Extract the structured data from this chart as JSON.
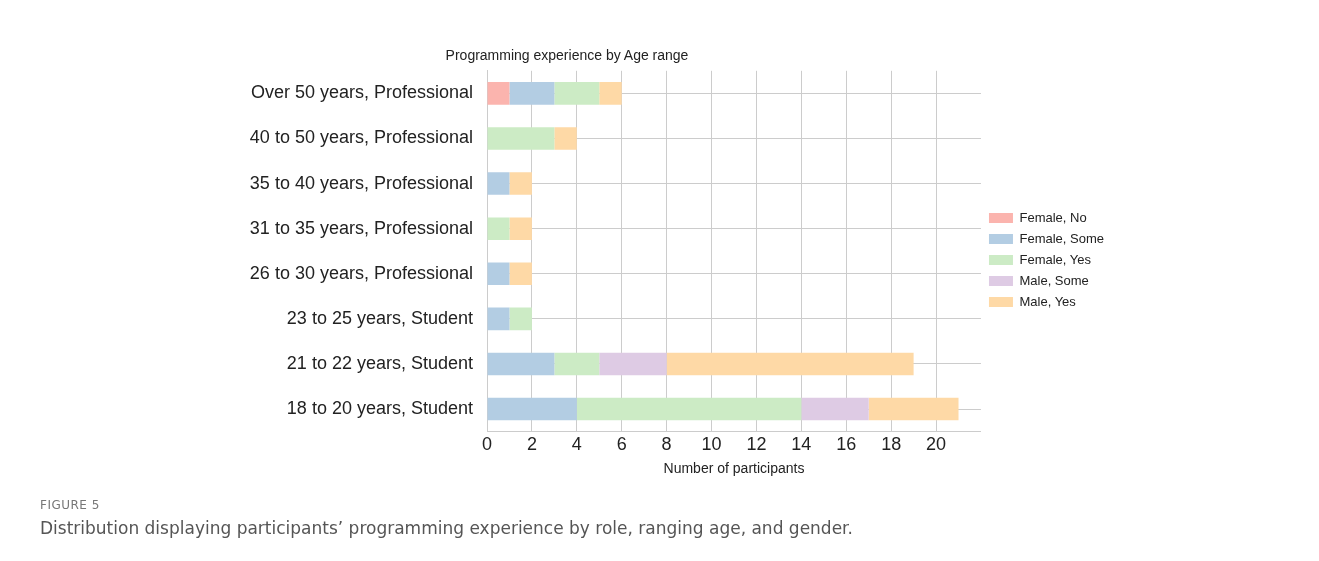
{
  "chart_data": {
    "type": "bar",
    "orientation": "horizontal",
    "stacked": true,
    "title": "Programming experience by Age range",
    "xlabel": "Number of participants",
    "categories": [
      "Over 50 years, Professional",
      "40 to 50 years, Professional",
      "35 to 40 years, Professional",
      "31 to 35 years, Professional",
      "26 to 30 years, Professional",
      "23 to 25 years, Student",
      "21 to 22 years, Student",
      "18 to 20 years, Student"
    ],
    "series": [
      {
        "name": "Female, No",
        "color": "#fbb4ae",
        "values": [
          1,
          null,
          null,
          null,
          null,
          null,
          null,
          null
        ]
      },
      {
        "name": "Female, Some",
        "color": "#b3cde3",
        "values": [
          2,
          null,
          1,
          null,
          1,
          1,
          3,
          4
        ]
      },
      {
        "name": "Female, Yes",
        "color": "#ccebc5",
        "values": [
          2,
          3,
          null,
          1,
          null,
          1,
          2,
          10
        ]
      },
      {
        "name": "Male, Some",
        "color": "#decbe4",
        "values": [
          null,
          null,
          null,
          null,
          null,
          null,
          3,
          3
        ]
      },
      {
        "name": "Male, Yes",
        "color": "#fed9a6",
        "values": [
          1,
          1,
          1,
          1,
          1,
          null,
          11,
          4
        ]
      }
    ],
    "xlim": [
      0,
      22
    ],
    "xticks": [
      0,
      2,
      4,
      6,
      8,
      10,
      12,
      14,
      16,
      18,
      20
    ],
    "grid": true,
    "legend": "right",
    "annotations": [
      "FIGURE 5",
      "Distribution displaying participants’ programming experience by role, ranging age, and gender."
    ]
  }
}
